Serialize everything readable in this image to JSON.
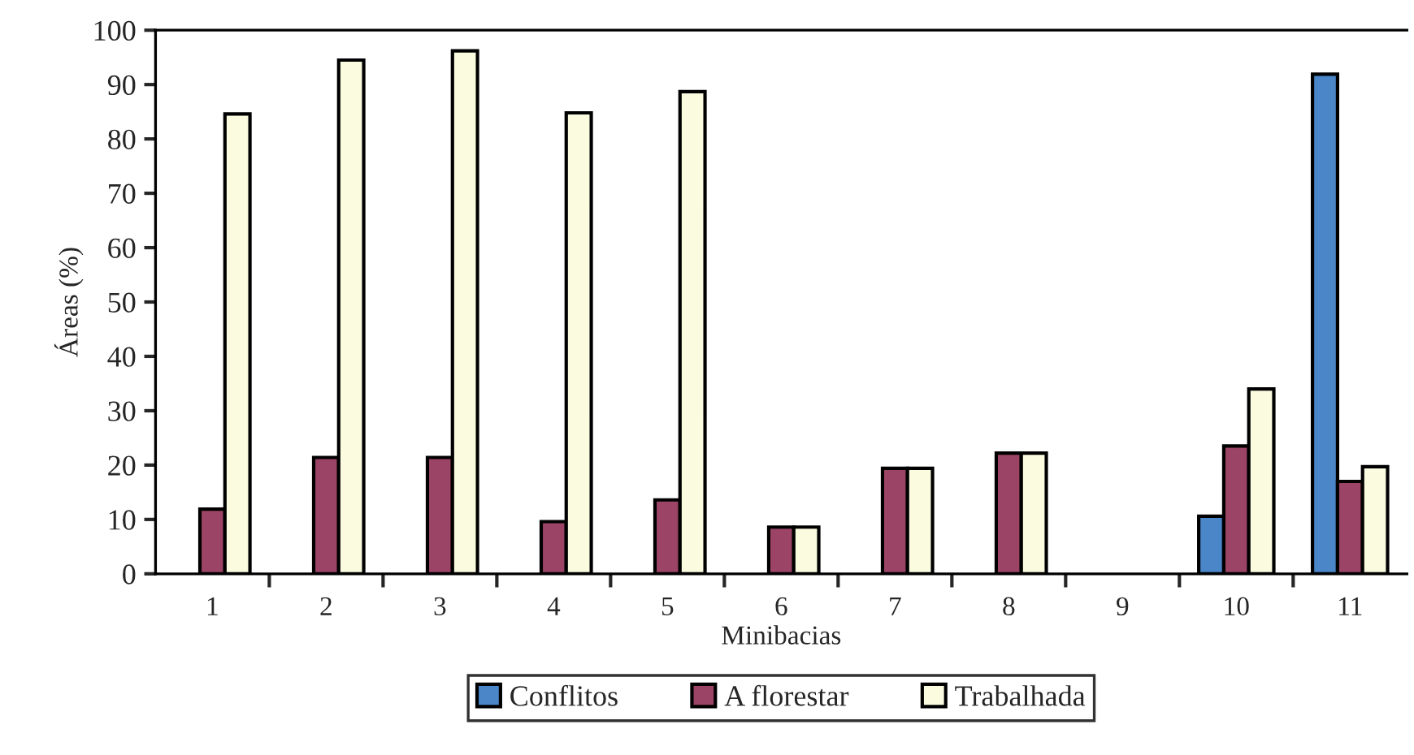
{
  "chart_data": {
    "type": "bar",
    "xlabel": "Minibacias",
    "ylabel": "Áreas (%)",
    "categories": [
      "1",
      "2",
      "3",
      "4",
      "5",
      "6",
      "7",
      "8",
      "9",
      "10",
      "11"
    ],
    "series": [
      {
        "name": "Conflitos",
        "color": "#4a86c8",
        "values": [
          null,
          null,
          null,
          null,
          null,
          null,
          null,
          null,
          null,
          10.6,
          91.9
        ]
      },
      {
        "name": "A florestar",
        "color": "#9b4466",
        "values": [
          11.9,
          21.4,
          21.4,
          9.6,
          13.6,
          8.6,
          19.4,
          22.2,
          null,
          23.5,
          17.0
        ]
      },
      {
        "name": "Trabalhada",
        "color": "#fbfbe0",
        "values": [
          84.6,
          94.5,
          96.2,
          84.8,
          88.7,
          8.6,
          19.4,
          22.2,
          null,
          34.0,
          19.7
        ]
      }
    ],
    "ylim": [
      0,
      100
    ],
    "yticks": [
      0,
      10,
      20,
      30,
      40,
      50,
      60,
      70,
      80,
      90,
      100
    ],
    "grid": false,
    "legend": "bottom"
  }
}
